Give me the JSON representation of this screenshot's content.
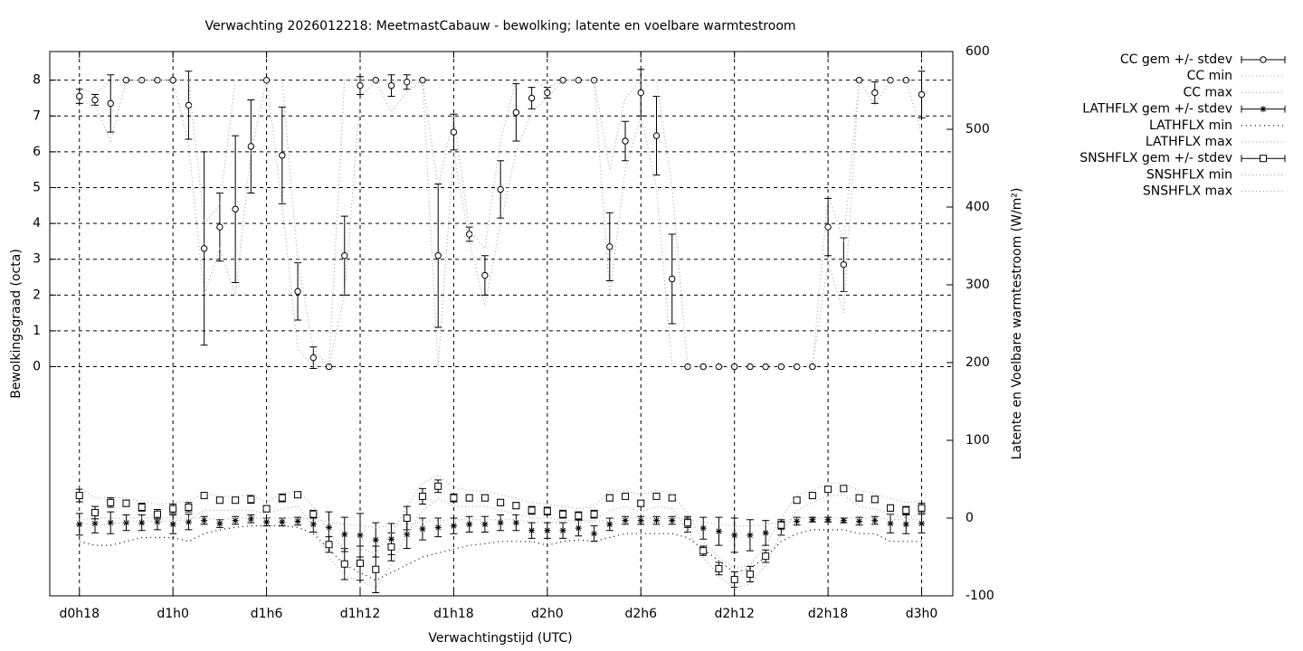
{
  "chart_data": {
    "type": "errorbar-line",
    "title": "Verwachting 2026012218: MeetmastCabauw - bewolking; latente en voelbare warmtestroom",
    "xlabel": "Verwachtingstijd (UTC)",
    "ylabel": "Bewolkingsgraad (octa)",
    "y2label": "Latente en Voelbare warmtestroom (W/m²)",
    "x": [
      0,
      1,
      2,
      3,
      4,
      5,
      6,
      7,
      8,
      9,
      10,
      11,
      12,
      13,
      14,
      15,
      16,
      17,
      18,
      19,
      20,
      21,
      22,
      23,
      24,
      25,
      26,
      27,
      28,
      29,
      30,
      31,
      32,
      33,
      34,
      35,
      36,
      37,
      38,
      39,
      40,
      41,
      42,
      43,
      44,
      45,
      46,
      47,
      48,
      49,
      50,
      51,
      52,
      53,
      54
    ],
    "xlim": [
      -1.9,
      56
    ],
    "xticks": [
      {
        "value": 0,
        "label": "d0h18"
      },
      {
        "value": 6,
        "label": "d1h0"
      },
      {
        "value": 12,
        "label": "d1h6"
      },
      {
        "value": 18,
        "label": "d1h12"
      },
      {
        "value": 24,
        "label": "d1h18"
      },
      {
        "value": 30,
        "label": "d2h0"
      },
      {
        "value": 36,
        "label": "d2h6"
      },
      {
        "value": 42,
        "label": "d2h12"
      },
      {
        "value": 48,
        "label": "d2h18"
      },
      {
        "value": 54,
        "label": "d3h0"
      }
    ],
    "ylim": [
      -6.4,
      8.8
    ],
    "yticks": [
      0,
      1,
      2,
      3,
      4,
      5,
      6,
      7,
      8
    ],
    "y2lim": [
      -100,
      600
    ],
    "y2ticks": [
      -100,
      0,
      100,
      200,
      300,
      400,
      500,
      600
    ],
    "grid": true,
    "legend": "outside-right",
    "series": [
      {
        "name": "CC gem +/- stdev",
        "color": "#000000",
        "marker": "circle",
        "axis": "y",
        "values": [
          7.55,
          7.45,
          7.35,
          8,
          8,
          8,
          8,
          7.3,
          3.3,
          3.9,
          4.4,
          6.15,
          8,
          5.9,
          2.1,
          0.25,
          0,
          3.1,
          7.85,
          8,
          7.85,
          7.95,
          8,
          3.1,
          6.55,
          3.7,
          2.55,
          4.95,
          7.1,
          7.5,
          7.65,
          8,
          8,
          8,
          3.35,
          6.3,
          7.65,
          6.45,
          2.45,
          0,
          0,
          0,
          0,
          0,
          0,
          0,
          0,
          0,
          3.9,
          2.85,
          8,
          7.65,
          8,
          8,
          7.6
        ],
        "errors": [
          0.2,
          0.15,
          0.8,
          0,
          0,
          0,
          0,
          0.95,
          2.7,
          0.95,
          2.05,
          1.3,
          0,
          1.35,
          0.8,
          0.3,
          0,
          1.1,
          0.25,
          0,
          0.3,
          0.2,
          0,
          2,
          0.5,
          0.2,
          0.55,
          0.8,
          0.8,
          0.3,
          0.15,
          0,
          0,
          0,
          0.95,
          0.55,
          0.65,
          1.1,
          1.25,
          0,
          0,
          0,
          0,
          0,
          0,
          0,
          0,
          0,
          0.8,
          0.75,
          0,
          0.3,
          0,
          0,
          0.65
        ]
      },
      {
        "name": "CC min",
        "color": "#aaaaaa",
        "dash": "1,3",
        "axis": "y",
        "values": [
          7.4,
          7.3,
          6.3,
          8,
          8,
          8,
          8,
          6.2,
          2,
          3.3,
          2,
          6,
          8,
          4.5,
          0.5,
          0,
          0,
          2,
          7.5,
          8,
          7.1,
          7.7,
          8,
          0,
          6,
          3.5,
          1.7,
          4,
          6,
          7.1,
          7.5,
          8,
          8,
          8,
          2,
          5.5,
          7,
          5,
          0,
          0,
          0,
          0,
          0,
          0,
          0,
          0,
          0,
          0,
          2.9,
          1.5,
          8,
          7.3,
          8,
          8,
          6.5
        ]
      },
      {
        "name": "CC max",
        "color": "#aaaaaa",
        "dash": "1,3",
        "axis": "y",
        "values": [
          7.8,
          7.6,
          8,
          8,
          8,
          8,
          8,
          8,
          4,
          4.5,
          8,
          8,
          8,
          8,
          3,
          0.5,
          0,
          8,
          8,
          8,
          8,
          8,
          8,
          5,
          7,
          3.8,
          3.3,
          6.3,
          8,
          8,
          7.8,
          8,
          8,
          8,
          5.5,
          7.5,
          8,
          8,
          5,
          0,
          0,
          0,
          0,
          0,
          0,
          0,
          0,
          0,
          4.8,
          3.5,
          8,
          8,
          8,
          8,
          8
        ]
      },
      {
        "name": "LATHFLX gem +/- stdev",
        "color": "#000000",
        "marker": "star",
        "axis": "y2",
        "values": [
          -8,
          -7,
          -6,
          -6,
          -6,
          -5,
          -8,
          -5,
          -3,
          -7,
          -3,
          -1,
          -5,
          -5,
          -4,
          -8,
          -12,
          -21,
          -22,
          -28,
          -27,
          -21,
          -14,
          -12,
          -10,
          -8,
          -8,
          -6,
          -6,
          -16,
          -16,
          -16,
          -13,
          -20,
          -8,
          -3,
          -3,
          -3,
          -3,
          -8,
          -13,
          -17,
          -22,
          -22,
          -19,
          -12,
          -4,
          -2,
          -2,
          -3,
          -4,
          -3,
          -7,
          -8,
          -7
        ],
        "errors": [
          14,
          12,
          14,
          10,
          10,
          10,
          12,
          10,
          5,
          5,
          5,
          5,
          5,
          5,
          5,
          10,
          20,
          22,
          28,
          22,
          20,
          18,
          14,
          12,
          10,
          10,
          10,
          10,
          10,
          10,
          10,
          10,
          10,
          10,
          8,
          5,
          5,
          5,
          5,
          10,
          14,
          18,
          22,
          20,
          16,
          10,
          5,
          3,
          3,
          3,
          5,
          5,
          12,
          12,
          12
        ]
      },
      {
        "name": "LATHFLX min",
        "color": "#000000",
        "dash": "1,4",
        "axis": "y2",
        "values": [
          -30,
          -35,
          -35,
          -30,
          -25,
          -25,
          -25,
          -30,
          -20,
          -15,
          -12,
          -10,
          -10,
          -10,
          -12,
          -20,
          -40,
          -60,
          -70,
          -80,
          -70,
          -60,
          -50,
          -45,
          -40,
          -35,
          -33,
          -30,
          -30,
          -30,
          -35,
          -30,
          -28,
          -30,
          -25,
          -20,
          -20,
          -20,
          -20,
          -25,
          -40,
          -55,
          -70,
          -65,
          -50,
          -30,
          -20,
          -15,
          -15,
          -15,
          -20,
          -20,
          -30,
          -30,
          -30
        ]
      },
      {
        "name": "LATHFLX max",
        "color": "#aaaaaa",
        "dash": "1,3",
        "axis": "y2",
        "values": [
          -2,
          0,
          0,
          0,
          0,
          0,
          0,
          0,
          0,
          -2,
          0,
          0,
          0,
          0,
          0,
          -2,
          -5,
          -8,
          -10,
          -12,
          -10,
          -8,
          -5,
          -3,
          -2,
          -2,
          -2,
          -2,
          -2,
          -5,
          -5,
          -5,
          -5,
          -5,
          -2,
          0,
          0,
          0,
          0,
          -2,
          -5,
          -8,
          -10,
          -10,
          -8,
          -5,
          0,
          0,
          0,
          0,
          0,
          0,
          -2,
          -2,
          -2
        ]
      },
      {
        "name": "SNSHFLX gem +/- stdev",
        "color": "#000000",
        "marker": "square",
        "axis": "y2",
        "values": [
          29,
          7,
          20,
          19,
          14,
          5,
          12,
          14,
          29,
          23,
          23,
          24,
          12,
          26,
          30,
          5,
          -34,
          -59,
          -58,
          -66,
          -37,
          0,
          28,
          41,
          26,
          26,
          26,
          20,
          16,
          10,
          9,
          5,
          3,
          5,
          26,
          28,
          19,
          28,
          26,
          -6,
          -42,
          -65,
          -79,
          -72,
          -49,
          -9,
          23,
          29,
          37,
          38,
          26,
          24,
          13,
          10,
          13
        ],
        "errors": [
          8,
          8,
          6,
          4,
          5,
          6,
          6,
          6,
          3,
          3,
          3,
          5,
          4,
          5,
          3,
          5,
          10,
          20,
          22,
          30,
          18,
          15,
          10,
          8,
          5,
          4,
          4,
          4,
          4,
          5,
          5,
          5,
          5,
          5,
          4,
          3,
          4,
          3,
          3,
          6,
          6,
          8,
          10,
          10,
          8,
          5,
          3,
          3,
          3,
          3,
          4,
          4,
          4,
          5,
          6
        ]
      },
      {
        "name": "SNSHFLX min",
        "color": "#aaaaaa",
        "dash": "1,3",
        "axis": "y2",
        "values": [
          -5,
          -10,
          -8,
          -5,
          -3,
          -5,
          -3,
          -3,
          10,
          10,
          10,
          10,
          5,
          12,
          15,
          -10,
          -50,
          -75,
          -80,
          -90,
          -60,
          -20,
          10,
          25,
          15,
          15,
          15,
          10,
          5,
          0,
          0,
          -3,
          -3,
          -3,
          10,
          15,
          8,
          15,
          12,
          -15,
          -50,
          -75,
          -90,
          -85,
          -60,
          -20,
          10,
          20,
          28,
          30,
          15,
          12,
          5,
          0,
          5
        ]
      },
      {
        "name": "SNSHFLX max",
        "color": "#aaaaaa",
        "dash": "1,3",
        "axis": "y2",
        "values": [
          40,
          25,
          28,
          25,
          22,
          18,
          20,
          22,
          32,
          28,
          28,
          30,
          20,
          32,
          35,
          15,
          -20,
          -40,
          -40,
          -45,
          -20,
          15,
          45,
          55,
          40,
          35,
          35,
          30,
          25,
          20,
          18,
          15,
          12,
          15,
          35,
          35,
          30,
          35,
          32,
          5,
          -30,
          -50,
          -65,
          -60,
          -35,
          0,
          30,
          35,
          45,
          45,
          35,
          32,
          25,
          20,
          22
        ]
      }
    ]
  }
}
